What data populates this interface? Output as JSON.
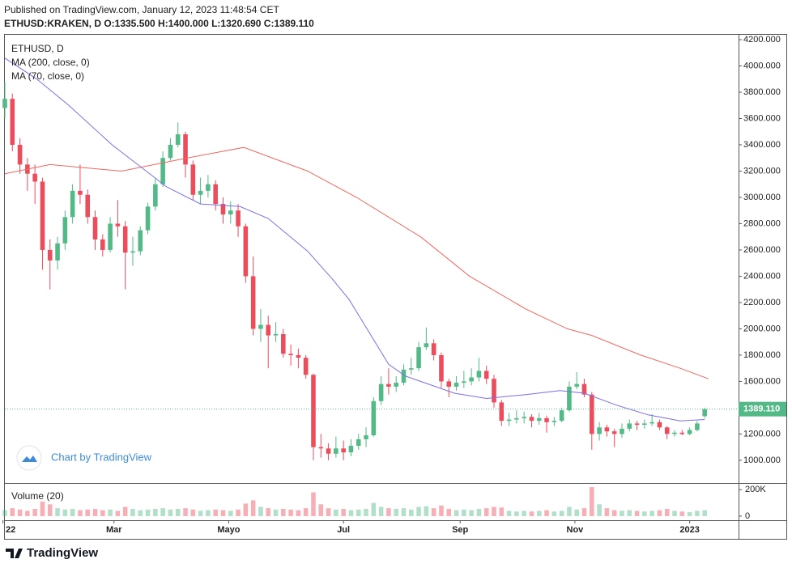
{
  "published": "Published on TradingView.com, January 12, 2023 11:48:54 CET",
  "header": "ETHUSD:KRAKEN, D O:1335.500 H:1400.000 L:1320.690 C:1389.110",
  "watermark": "Chart by TradingView",
  "brand": "TradingView",
  "chart_data": {
    "type": "candlestick",
    "title": "ETHUSD, D",
    "up_color": "#53b987",
    "down_color": "#eb4d5c",
    "grid": false,
    "x": [
      1,
      5,
      9,
      13,
      17,
      21,
      25,
      29,
      33,
      37,
      41,
      45,
      49,
      53,
      57,
      61,
      65,
      69,
      73,
      77,
      81,
      85,
      89,
      93,
      97,
      101,
      105,
      109,
      113,
      117,
      121,
      125,
      129,
      133,
      137,
      141,
      145,
      149,
      153,
      157,
      161,
      165,
      169,
      173,
      177,
      181,
      185,
      189,
      193,
      197,
      201,
      205,
      209,
      213,
      217,
      221,
      225,
      229,
      233,
      237,
      241,
      245,
      249,
      253,
      257,
      261,
      265,
      269,
      273,
      277,
      281,
      285,
      289,
      293,
      297,
      301,
      305,
      309,
      313,
      317,
      321,
      325,
      329,
      333,
      337,
      341,
      345,
      349,
      353,
      357,
      361,
      365,
      369,
      373
    ],
    "open": [
      3680,
      3750,
      3400,
      3250,
      3180,
      3120,
      2600,
      2520,
      2650,
      2850,
      3050,
      3020,
      2850,
      2680,
      2600,
      2800,
      2780,
      2580,
      2590,
      2750,
      2930,
      3100,
      3300,
      3400,
      3480,
      3250,
      3020,
      3050,
      3100,
      2950,
      2870,
      2900,
      2780,
      2400,
      2000,
      2030,
      1950,
      1960,
      1810,
      1800,
      1780,
      1650,
      1100,
      1090,
      1050,
      1090,
      1060,
      1110,
      1160,
      1190,
      1450,
      1580,
      1560,
      1590,
      1690,
      1700,
      1860,
      1890,
      1800,
      1600,
      1560,
      1590,
      1600,
      1630,
      1680,
      1620,
      1440,
      1300,
      1310,
      1320,
      1330,
      1300,
      1320,
      1290,
      1300,
      1380,
      1560,
      1580,
      1500,
      1200,
      1250,
      1220,
      1200,
      1240,
      1280,
      1270,
      1280,
      1290,
      1250,
      1200,
      1210,
      1200,
      1230,
      1335.5
    ],
    "high": [
      3880,
      3790,
      3450,
      3300,
      3250,
      3150,
      2680,
      2700,
      2900,
      3100,
      3250,
      3060,
      2900,
      2720,
      2850,
      2980,
      2820,
      2700,
      2780,
      2960,
      3150,
      3350,
      3450,
      3570,
      3500,
      3280,
      3150,
      3170,
      3130,
      3000,
      2970,
      2950,
      2800,
      2550,
      2150,
      2100,
      2050,
      2000,
      1880,
      1850,
      1800,
      1660,
      1200,
      1130,
      1180,
      1150,
      1160,
      1200,
      1250,
      1480,
      1640,
      1700,
      1640,
      1730,
      1780,
      1900,
      2010,
      1920,
      1820,
      1620,
      1640,
      1680,
      1700,
      1780,
      1720,
      1650,
      1460,
      1360,
      1380,
      1370,
      1350,
      1360,
      1340,
      1330,
      1400,
      1600,
      1670,
      1620,
      1520,
      1290,
      1270,
      1240,
      1280,
      1310,
      1300,
      1310,
      1350,
      1310,
      1260,
      1230,
      1230,
      1250,
      1300,
      1400
    ],
    "low": [
      3600,
      3350,
      3180,
      3050,
      2950,
      2450,
      2300,
      2450,
      2600,
      2800,
      2950,
      2800,
      2600,
      2550,
      2580,
      2700,
      2300,
      2480,
      2560,
      2720,
      2900,
      3080,
      3280,
      3380,
      3150,
      2980,
      2950,
      3000,
      2900,
      2800,
      2800,
      2700,
      2350,
      1950,
      1900,
      1700,
      1900,
      1780,
      1720,
      1700,
      1620,
      1000,
      1020,
      1000,
      1020,
      1000,
      1030,
      1080,
      1100,
      1180,
      1420,
      1500,
      1520,
      1570,
      1650,
      1680,
      1840,
      1760,
      1550,
      1480,
      1530,
      1550,
      1570,
      1600,
      1580,
      1400,
      1260,
      1260,
      1280,
      1280,
      1250,
      1270,
      1210,
      1260,
      1290,
      1370,
      1540,
      1480,
      1080,
      1150,
      1180,
      1100,
      1170,
      1220,
      1230,
      1240,
      1260,
      1230,
      1160,
      1180,
      1190,
      1190,
      1220,
      1320.69
    ],
    "close": [
      3750,
      3400,
      3250,
      3180,
      3120,
      2600,
      2520,
      2650,
      2850,
      3050,
      3020,
      2850,
      2680,
      2600,
      2800,
      2780,
      2580,
      2590,
      2750,
      2930,
      3100,
      3300,
      3400,
      3480,
      3250,
      3020,
      3050,
      3100,
      2950,
      2870,
      2900,
      2780,
      2400,
      2000,
      2030,
      1950,
      1960,
      1810,
      1800,
      1780,
      1650,
      1100,
      1090,
      1050,
      1090,
      1060,
      1110,
      1160,
      1190,
      1450,
      1580,
      1560,
      1590,
      1690,
      1700,
      1860,
      1890,
      1800,
      1600,
      1560,
      1590,
      1600,
      1630,
      1680,
      1620,
      1440,
      1300,
      1310,
      1320,
      1330,
      1300,
      1320,
      1290,
      1300,
      1380,
      1560,
      1580,
      1500,
      1200,
      1250,
      1220,
      1200,
      1240,
      1280,
      1270,
      1280,
      1290,
      1250,
      1200,
      1210,
      1200,
      1230,
      1280,
      1389.11
    ],
    "volume": [
      45000,
      60000,
      50000,
      40000,
      55000,
      110000,
      90000,
      60000,
      50000,
      55000,
      45000,
      50000,
      55000,
      45000,
      50000,
      40000,
      70000,
      55000,
      45000,
      50000,
      55000,
      60000,
      50000,
      55000,
      60000,
      50000,
      40000,
      45000,
      50000,
      45000,
      40000,
      50000,
      95000,
      120000,
      70000,
      60000,
      50000,
      55000,
      50000,
      45000,
      60000,
      180000,
      90000,
      60000,
      50000,
      55000,
      45000,
      50000,
      55000,
      100000,
      70000,
      60000,
      55000,
      60000,
      50000,
      70000,
      75000,
      60000,
      80000,
      55000,
      45000,
      50000,
      45000,
      55000,
      60000,
      70000,
      65000,
      40000,
      35000,
      40000,
      35000,
      40000,
      45000,
      35000,
      40000,
      70000,
      50000,
      60000,
      220000,
      90000,
      60000,
      45000,
      40000,
      45000,
      40000,
      35000,
      40000,
      45000,
      55000,
      40000,
      35000,
      30000,
      40000,
      45000
    ],
    "series": [
      {
        "name": "MA (200, close, 0)",
        "color": "#f06862",
        "x": [
          1,
          25,
          63,
          98,
          128,
          162,
          188,
          222,
          248,
          278,
          300,
          313,
          339,
          360,
          375
        ],
        "values": [
          3180,
          3250,
          3200,
          3300,
          3380,
          3200,
          3000,
          2700,
          2400,
          2150,
          2000,
          1950,
          1800,
          1700,
          1620
        ]
      },
      {
        "name": "MA (70, close, 0)",
        "color": "#7b6ee6",
        "x": [
          1,
          18,
          35,
          58,
          87,
          105,
          126,
          141,
          162,
          175,
          184,
          205,
          214,
          240,
          257,
          278,
          296,
          309,
          326,
          343,
          360,
          373
        ],
        "values": [
          4060,
          3900,
          3700,
          3400,
          3080,
          2950,
          2930,
          2840,
          2590,
          2380,
          2223,
          1730,
          1640,
          1510,
          1470,
          1500,
          1530,
          1510,
          1420,
          1345,
          1300,
          1310
        ]
      }
    ],
    "volume_title": "Volume (20)",
    "xlim": [
      1,
      391
    ],
    "xticks": [
      {
        "value": 0,
        "label": "22"
      },
      {
        "value": 59,
        "label": "Mar"
      },
      {
        "value": 120,
        "label": "Mayo"
      },
      {
        "value": 181,
        "label": "Jul"
      },
      {
        "value": 243,
        "label": "Sep"
      },
      {
        "value": 304,
        "label": "Nov"
      },
      {
        "value": 365,
        "label": "2023"
      }
    ],
    "ylim": [
      827,
      4237
    ],
    "yticks": [
      {
        "value": 1000,
        "label": "1000.000"
      },
      {
        "value": 1200,
        "label": "1200.000"
      },
      {
        "value": 1400,
        "label": "1400.000"
      },
      {
        "value": 1600,
        "label": "1600.000"
      },
      {
        "value": 1800,
        "label": "1800.000"
      },
      {
        "value": 2000,
        "label": "2000.000"
      },
      {
        "value": 2200,
        "label": "2200.000"
      },
      {
        "value": 2400,
        "label": "2400.000"
      },
      {
        "value": 2600,
        "label": "2600.000"
      },
      {
        "value": 2800,
        "label": "2800.000"
      },
      {
        "value": 3000,
        "label": "3000.000"
      },
      {
        "value": 3200,
        "label": "3200.000"
      },
      {
        "value": 3400,
        "label": "3400.000"
      },
      {
        "value": 3600,
        "label": "3600.000"
      },
      {
        "value": 3800,
        "label": "3800.000"
      },
      {
        "value": 4000,
        "label": "4000.000"
      },
      {
        "value": 4200,
        "label": "4200.000"
      }
    ],
    "volume_lim": [
      -25000,
      245000
    ],
    "volume_ticks": [
      0,
      {
        "value": 200000,
        "label": "200K"
      }
    ],
    "last_price": {
      "value": 1389.11,
      "label": "1389.110"
    }
  }
}
